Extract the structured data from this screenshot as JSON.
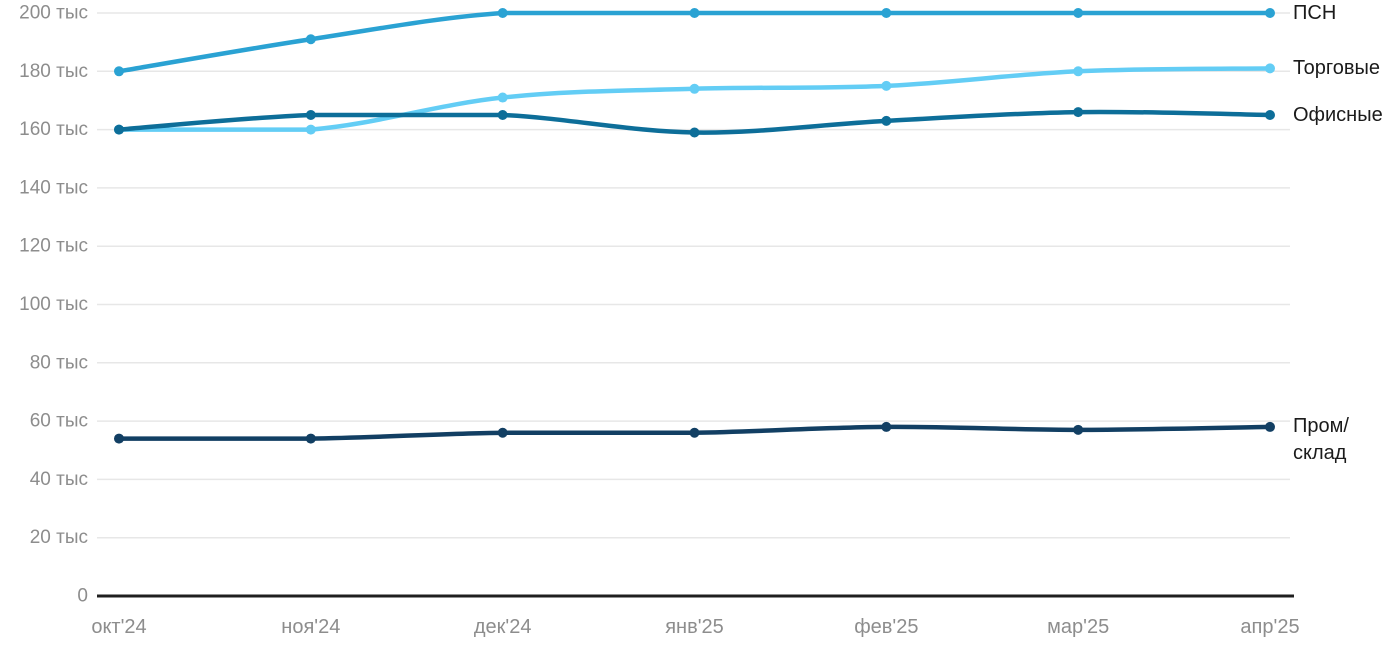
{
  "chart_data": {
    "type": "line",
    "x": [
      "окт'24",
      "ноя'24",
      "дек'24",
      "янв'25",
      "фев'25",
      "мар'25",
      "апр'25"
    ],
    "series": [
      {
        "name": "ПСН",
        "legend_label": "ПСН",
        "color": "#2aa2d3",
        "values": [
          180,
          191,
          200,
          200,
          200,
          200,
          200
        ]
      },
      {
        "name": "Торговые",
        "legend_label": "Торговые",
        "color": "#63cdf5",
        "values": [
          160,
          160,
          171,
          174,
          175,
          180,
          181
        ]
      },
      {
        "name": "Офисные",
        "legend_label": "Офисные",
        "color": "#0d6e99",
        "values": [
          160,
          165,
          165,
          159,
          163,
          166,
          165
        ]
      },
      {
        "name": "Пром/склад",
        "legend_label": "Пром/\nсклад",
        "color": "#123f63",
        "values": [
          54,
          54,
          56,
          56,
          58,
          57,
          58
        ]
      }
    ],
    "y_ticks": [
      {
        "v": 0,
        "label": "0"
      },
      {
        "v": 20,
        "label": "20 тыс"
      },
      {
        "v": 40,
        "label": "40 тыс"
      },
      {
        "v": 60,
        "label": "60 тыс"
      },
      {
        "v": 80,
        "label": "80 тыс"
      },
      {
        "v": 100,
        "label": "100 тыс"
      },
      {
        "v": 120,
        "label": "120 тыс"
      },
      {
        "v": 140,
        "label": "140 тыс"
      },
      {
        "v": 160,
        "label": "160 тыс"
      },
      {
        "v": 180,
        "label": "180 тыс"
      },
      {
        "v": 200,
        "label": "200 тыс"
      }
    ],
    "ylim": [
      0,
      200
    ],
    "grid": "horizontal",
    "legend_position": "right-end",
    "colors": {
      "background": "#ffffff",
      "gridline": "#e7e7e7",
      "axis_line": "#1f1f1f",
      "axis_text": "#8d8d8d",
      "legend_text": "#1b1b1b"
    }
  }
}
